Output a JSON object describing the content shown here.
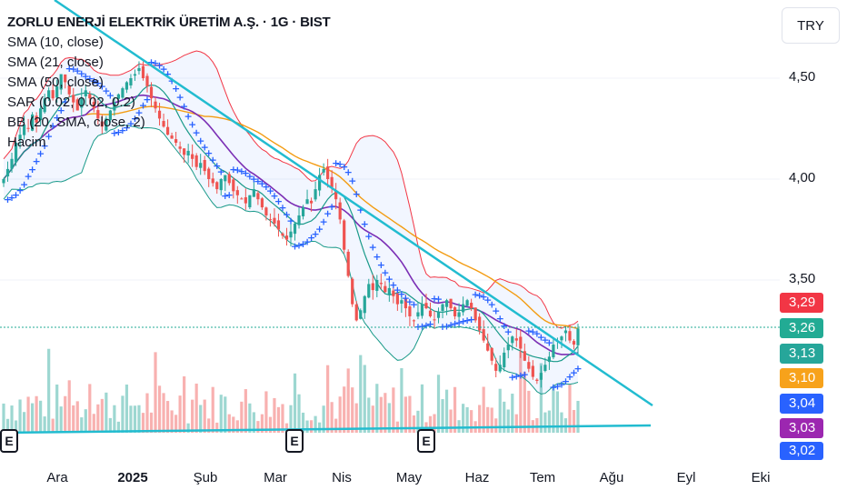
{
  "legend": {
    "title": "ZORLU ENERJİ ELEKTRİK ÜRETİM A.Ş. · 1G · BIST",
    "rows": [
      "SMA (10, close)",
      "SMA (21, close)",
      "SMA (50, close)",
      "SAR (0.02, 0.02, 0.2)",
      "BB (20, SMA, close, 2)",
      "Hacim"
    ]
  },
  "currency": "TRY",
  "price_axis_labels": [
    "4,50",
    "4,00",
    "3,50"
  ],
  "price_tags": [
    {
      "text": "3,29",
      "color": "#f23645"
    },
    {
      "text": "3,26",
      "color": "#22ab94"
    },
    {
      "text": "3,13",
      "color": "#26a69a"
    },
    {
      "text": "3,10",
      "color": "#f7a21b"
    },
    {
      "text": "3,04",
      "color": "#2962ff"
    },
    {
      "text": "3,03",
      "color": "#9c27b0"
    },
    {
      "text": "3,02",
      "color": "#2962ff"
    }
  ],
  "time_axis_labels": [
    "Ara",
    "2025",
    "Şub",
    "Mar",
    "Nis",
    "May",
    "Haz",
    "Tem",
    "Ağu",
    "Eyl",
    "Eki"
  ],
  "earnings_badge": "E",
  "colors": {
    "up": "#26a69a",
    "down": "#ef5350",
    "sma10": "#1a9a8a",
    "sma21": "#7b2fb5",
    "sma50": "#f39c12",
    "sar": "#2962ff",
    "bb": "#f23645",
    "trendline": "#22bcd0"
  },
  "chart_data": {
    "type": "candlestick",
    "symbol": "ZORLU ENERJİ ELEKTRİK ÜRETİM A.Ş.",
    "interval": "1G",
    "exchange": "BIST",
    "currency": "TRY",
    "x_ticks": [
      "Ara",
      "2025",
      "Şub",
      "Mar",
      "Nis",
      "May",
      "Haz",
      "Tem",
      "Ağu",
      "Eyl",
      "Eki"
    ],
    "y_ticks": [
      4.5,
      4.0,
      3.5
    ],
    "y_range": [
      2.8,
      4.75
    ],
    "close_series": [
      4.0,
      4.05,
      4.1,
      4.18,
      4.22,
      4.27,
      4.25,
      4.32,
      4.28,
      4.35,
      4.4,
      4.44,
      4.4,
      4.46,
      4.52,
      4.48,
      4.42,
      4.38,
      4.34,
      4.4,
      4.44,
      4.4,
      4.35,
      4.3,
      4.26,
      4.3,
      4.34,
      4.38,
      4.42,
      4.45,
      4.48,
      4.5,
      4.52,
      4.55,
      4.5,
      4.46,
      4.4,
      4.35,
      4.3,
      4.26,
      4.22,
      4.2,
      4.18,
      4.15,
      4.12,
      4.14,
      4.1,
      4.06,
      4.08,
      4.04,
      4.0,
      3.98,
      3.95,
      4.0,
      4.02,
      3.98,
      3.94,
      3.92,
      3.9,
      3.88,
      3.92,
      3.95,
      3.9,
      3.86,
      3.82,
      3.8,
      3.78,
      3.75,
      3.72,
      3.7,
      3.74,
      3.78,
      3.82,
      3.86,
      3.9,
      3.88,
      3.95,
      4.02,
      4.05,
      4.0,
      3.96,
      3.9,
      3.8,
      3.65,
      3.52,
      3.38,
      3.3,
      3.35,
      3.42,
      3.48,
      3.45,
      3.5,
      3.48,
      3.44,
      3.46,
      3.42,
      3.38,
      3.4,
      3.36,
      3.32,
      3.3,
      3.34,
      3.38,
      3.36,
      3.32,
      3.3,
      3.34,
      3.38,
      3.4,
      3.36,
      3.32,
      3.34,
      3.38,
      3.4,
      3.36,
      3.3,
      3.25,
      3.2,
      3.15,
      3.1,
      3.05,
      3.08,
      3.14,
      3.18,
      3.22,
      3.2,
      3.16,
      3.1,
      3.06,
      3.02,
      3.0,
      3.04,
      3.08,
      3.12,
      3.18,
      3.2,
      3.22,
      3.25,
      3.2,
      3.18,
      3.26
    ],
    "sma10_last": 3.13,
    "sma21_last": 3.03,
    "sma50_last": 3.1,
    "sar_last": 3.04,
    "bb_upper_last": 3.29,
    "last_close": 3.26,
    "volume_min_label": 3.02,
    "earnings_markers": 3,
    "trendlines": [
      "descending resistance",
      "horizontal support"
    ]
  }
}
